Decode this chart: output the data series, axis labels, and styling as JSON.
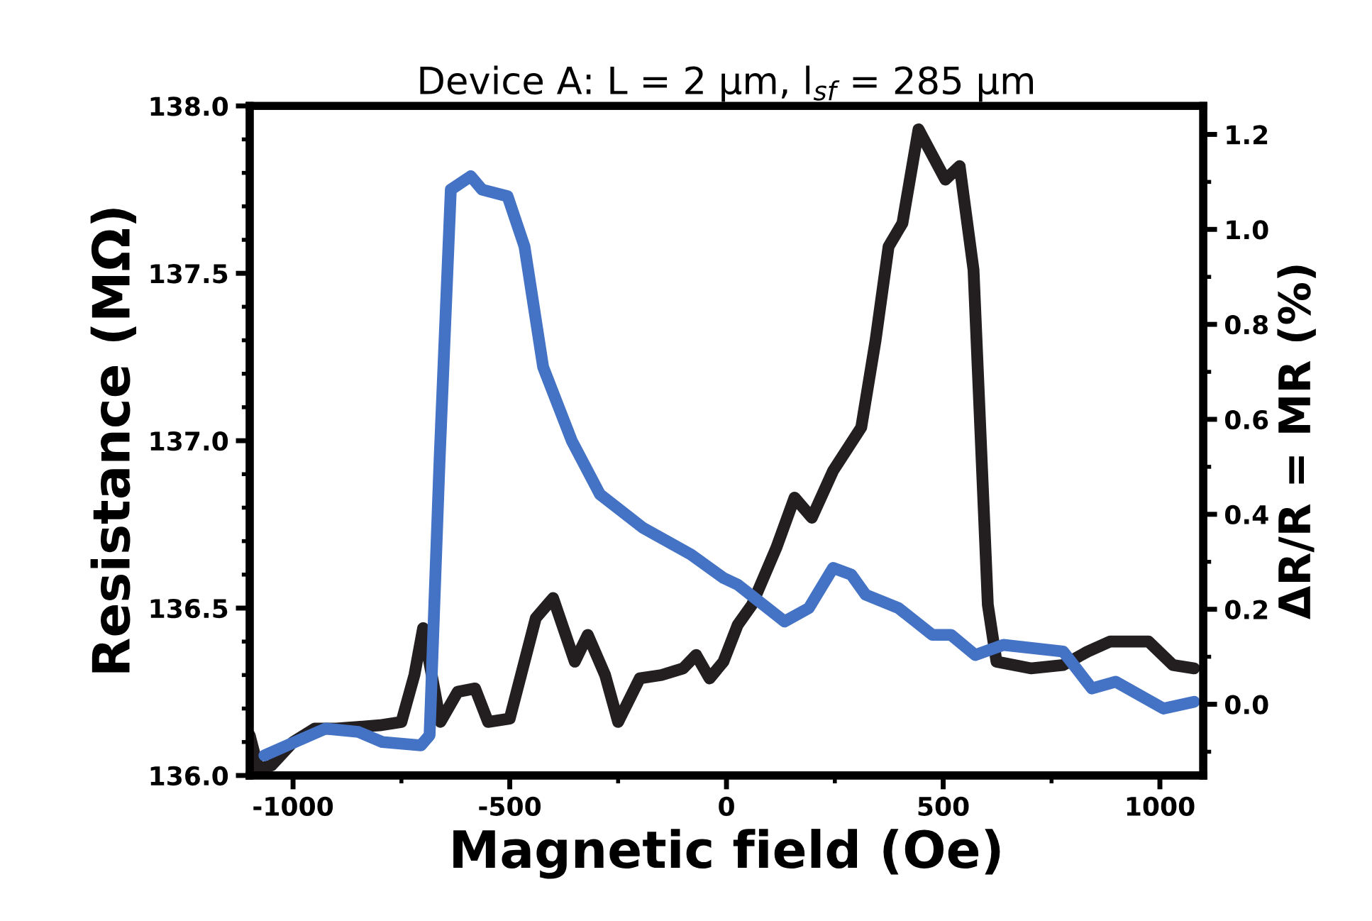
{
  "chart_data": {
    "type": "line",
    "title": "Device A: L = 2 µm, l$_{sf}$ = 285 µm",
    "xlabel": "Magnetic field (Oe)",
    "ylabel": "Resistance (MΩ)",
    "y2label": "ΔR/R = MR (%)",
    "xlim": [
      -1100,
      1100
    ],
    "xticks": [
      -1000,
      -500,
      0,
      500,
      1000
    ],
    "ylim": [
      136.0,
      138.0
    ],
    "yticks": [
      {
        "value": 136.0,
        "label": "136.0"
      },
      {
        "value": 136.5,
        "label": "136.5"
      },
      {
        "value": 137.0,
        "label": "137.0"
      },
      {
        "value": 137.5,
        "label": "137.5"
      },
      {
        "value": 138.0,
        "label": "138.0"
      }
    ],
    "y2lim": [
      -0.15,
      1.26
    ],
    "y2ticks": [
      {
        "value": 0.0,
        "label": "0.0"
      },
      {
        "value": 0.2,
        "label": "0.2"
      },
      {
        "value": 0.4,
        "label": "0.4"
      },
      {
        "value": 0.6,
        "label": "0.6"
      },
      {
        "value": 0.8,
        "label": "0.8"
      },
      {
        "value": 1.0,
        "label": "1.0"
      },
      {
        "value": 1.2,
        "label": "1.2"
      }
    ],
    "grid": false,
    "marker": "none",
    "line_style": "solid",
    "series": [
      {
        "color": "#231f20",
        "x": [
          -1100,
          -1080,
          -1050,
          -1000,
          -950,
          -900,
          -800,
          -750,
          -720,
          -700,
          -680,
          -660,
          -620,
          -580,
          -550,
          -500,
          -440,
          -400,
          -350,
          -320,
          -280,
          -250,
          -200,
          -150,
          -100,
          -70,
          -39,
          -7,
          26,
          59,
          115,
          157,
          197,
          246,
          311,
          344,
          374,
          406,
          443,
          472,
          505,
          538,
          570,
          603,
          623,
          702,
          777,
          833,
          885,
          974,
          1030,
          1079
        ],
        "values": [
          136.12,
          136.02,
          136.03,
          136.1,
          136.14,
          136.14,
          136.15,
          136.16,
          136.3,
          136.44,
          136.3,
          136.16,
          136.25,
          136.26,
          136.16,
          136.17,
          136.47,
          136.53,
          136.34,
          136.42,
          136.3,
          136.16,
          136.29,
          136.3,
          136.32,
          136.36,
          136.29,
          136.34,
          136.45,
          136.51,
          136.68,
          136.83,
          136.77,
          136.91,
          137.04,
          137.3,
          137.58,
          137.65,
          137.93,
          137.86,
          137.78,
          137.82,
          137.51,
          136.51,
          136.34,
          136.32,
          136.33,
          136.37,
          136.4,
          136.4,
          136.33,
          136.32
        ]
      },
      {
        "color": "#4472c4",
        "x": [
          -1066,
          -1013,
          -925,
          -849,
          -794,
          -705,
          -685,
          -662,
          -636,
          -590,
          -564,
          -505,
          -466,
          -423,
          -357,
          -292,
          -193,
          -82,
          -7,
          26,
          134,
          190,
          246,
          288,
          321,
          397,
          475,
          518,
          574,
          639,
          777,
          843,
          898,
          1008,
          1079
        ],
        "values": [
          136.06,
          136.09,
          136.14,
          136.13,
          136.1,
          136.09,
          136.12,
          136.94,
          137.75,
          137.79,
          137.75,
          137.73,
          137.58,
          137.22,
          137.0,
          136.84,
          136.74,
          136.66,
          136.59,
          136.57,
          136.46,
          136.5,
          136.62,
          136.6,
          136.54,
          136.5,
          136.42,
          136.42,
          136.36,
          136.39,
          136.37,
          136.26,
          136.28,
          136.2,
          136.22
        ]
      }
    ]
  }
}
